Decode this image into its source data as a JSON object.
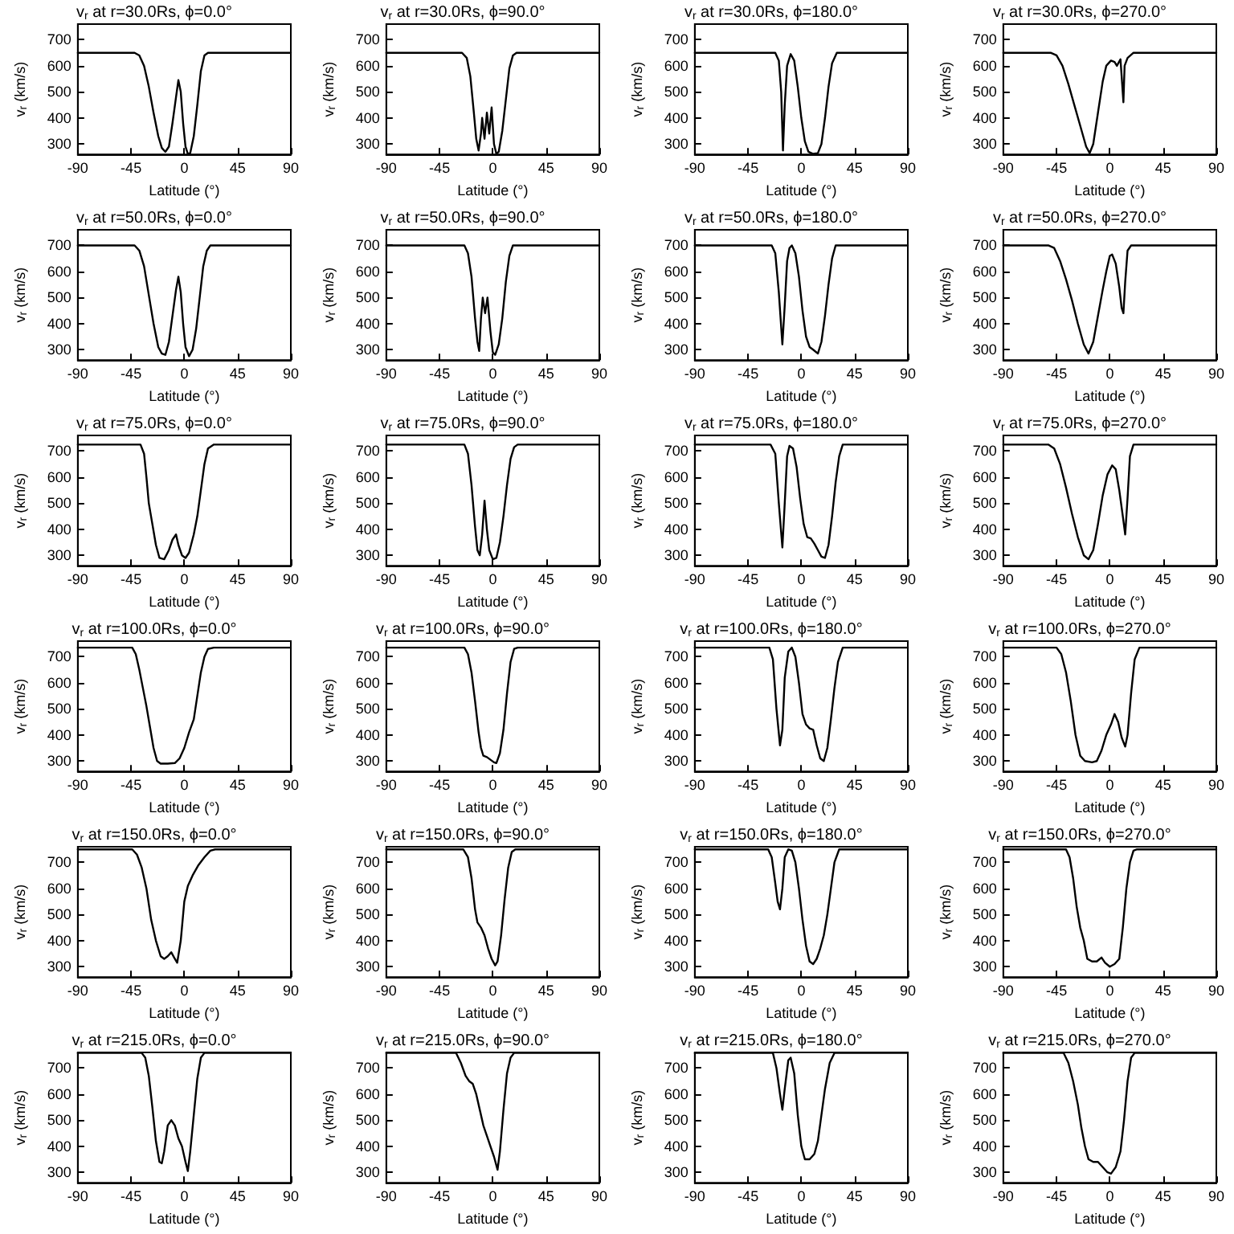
{
  "chart_data": [
    {
      "type": "line",
      "title": "v$_{r}$ at r=30.0Rs, ϕ=0.0°",
      "xlabel": "Latitude (°)",
      "ylabel": "v$_{r}$ (km/s)",
      "xlim": [
        -90,
        90
      ],
      "ylim": [
        260,
        760
      ],
      "xticks": [
        -90,
        -45,
        0,
        45,
        90
      ],
      "yticks": [
        300,
        400,
        500,
        600,
        700
      ],
      "grid": false,
      "marker": "none",
      "color": "#000000",
      "x": [
        -90,
        -42,
        -38,
        -34,
        -30,
        -26,
        -22,
        -19,
        -16,
        -13,
        -10,
        -7,
        -5,
        -3,
        -1,
        1,
        3,
        5,
        8,
        11,
        14,
        17,
        20,
        90
      ],
      "values": [
        650,
        650,
        640,
        600,
        520,
        420,
        330,
        285,
        270,
        290,
        380,
        480,
        545,
        500,
        380,
        290,
        262,
        265,
        330,
        450,
        580,
        640,
        650,
        650
      ]
    },
    {
      "type": "line",
      "title": "v$_{r}$ at r=30.0Rs, ϕ=90.0°",
      "xlabel": "Latitude (°)",
      "ylabel": "v$_{r}$ (km/s)",
      "xlim": [
        -90,
        90
      ],
      "ylim": [
        260,
        760
      ],
      "xticks": [
        -90,
        -45,
        0,
        45,
        90
      ],
      "yticks": [
        300,
        400,
        500,
        600,
        700
      ],
      "grid": false,
      "marker": "none",
      "color": "#000000",
      "x": [
        -90,
        -26,
        -22,
        -19,
        -16,
        -14,
        -12,
        -10,
        -9,
        -7,
        -5,
        -3,
        -1,
        1,
        3,
        5,
        8,
        11,
        14,
        17,
        20,
        90
      ],
      "values": [
        650,
        650,
        630,
        560,
        420,
        320,
        275,
        340,
        400,
        320,
        420,
        340,
        440,
        300,
        262,
        270,
        350,
        470,
        590,
        640,
        650,
        650
      ]
    },
    {
      "type": "line",
      "title": "v$_{r}$ at r=30.0Rs, ϕ=180.0°",
      "xlabel": "Latitude (°)",
      "ylabel": "v$_{r}$ (km/s)",
      "xlim": [
        -90,
        90
      ],
      "ylim": [
        260,
        760
      ],
      "xticks": [
        -90,
        -45,
        0,
        45,
        90
      ],
      "yticks": [
        300,
        400,
        500,
        600,
        700
      ],
      "grid": false,
      "marker": "none",
      "color": "#000000",
      "x": [
        -90,
        -22,
        -19,
        -17,
        -15.5,
        -14,
        -12,
        -9,
        -6,
        -3,
        0,
        3,
        6,
        10,
        14,
        17,
        20,
        23,
        26,
        30,
        90
      ],
      "values": [
        650,
        650,
        620,
        500,
        275,
        450,
        600,
        645,
        620,
        520,
        400,
        310,
        270,
        262,
        265,
        300,
        400,
        520,
        610,
        650,
        650
      ]
    },
    {
      "type": "line",
      "title": "v$_{r}$ at r=30.0Rs, ϕ=270.0°",
      "xlabel": "Latitude (°)",
      "ylabel": "v$_{r}$ (km/s)",
      "xlim": [
        -90,
        90
      ],
      "ylim": [
        260,
        760
      ],
      "xticks": [
        -90,
        -45,
        0,
        45,
        90
      ],
      "yticks": [
        300,
        400,
        500,
        600,
        700
      ],
      "grid": false,
      "marker": "none",
      "color": "#000000",
      "x": [
        -90,
        -50,
        -45,
        -40,
        -35,
        -30,
        -25,
        -20,
        -17,
        -14,
        -10,
        -6,
        -3,
        1,
        4,
        6,
        9,
        10,
        11.5,
        12.5,
        15,
        20,
        90
      ],
      "values": [
        650,
        650,
        640,
        600,
        530,
        450,
        370,
        290,
        265,
        300,
        420,
        540,
        600,
        620,
        615,
        600,
        625,
        560,
        460,
        600,
        630,
        650,
        650
      ]
    },
    {
      "type": "line",
      "title": "v$_{r}$ at r=50.0Rs, ϕ=0.0°",
      "xlabel": "Latitude (°)",
      "ylabel": "v$_{r}$ (km/s)",
      "xlim": [
        -90,
        90
      ],
      "ylim": [
        260,
        760
      ],
      "xticks": [
        -90,
        -45,
        0,
        45,
        90
      ],
      "yticks": [
        300,
        400,
        500,
        600,
        700
      ],
      "grid": false,
      "marker": "none",
      "color": "#000000",
      "x": [
        -90,
        -42,
        -38,
        -34,
        -30,
        -26,
        -22,
        -19,
        -16,
        -13,
        -10,
        -7,
        -5,
        -3,
        -1,
        1,
        4,
        7,
        10,
        13,
        16,
        19,
        22,
        90
      ],
      "values": [
        700,
        700,
        680,
        620,
        510,
        400,
        310,
        285,
        280,
        330,
        430,
        530,
        580,
        520,
        400,
        310,
        275,
        300,
        380,
        500,
        620,
        680,
        700,
        700
      ]
    },
    {
      "type": "line",
      "title": "v$_{r}$ at r=50.0Rs, ϕ=90.0°",
      "xlabel": "Latitude (°)",
      "ylabel": "v$_{r}$ (km/s)",
      "xlim": [
        -90,
        90
      ],
      "ylim": [
        260,
        760
      ],
      "xticks": [
        -90,
        -45,
        0,
        45,
        90
      ],
      "yticks": [
        300,
        400,
        500,
        600,
        700
      ],
      "grid": false,
      "marker": "none",
      "color": "#000000",
      "x": [
        -90,
        -24,
        -21,
        -18,
        -15,
        -13,
        -11.5,
        -10,
        -8.5,
        -6.5,
        -4.5,
        -2,
        0,
        2,
        5,
        8,
        11,
        14,
        17,
        90
      ],
      "values": [
        700,
        700,
        670,
        580,
        420,
        330,
        295,
        420,
        500,
        440,
        500,
        370,
        290,
        280,
        320,
        420,
        560,
        660,
        700,
        700
      ]
    },
    {
      "type": "line",
      "title": "v$_{r}$ at r=50.0Rs, ϕ=180.0°",
      "xlabel": "Latitude (°)",
      "ylabel": "v$_{r}$ (km/s)",
      "xlim": [
        -90,
        90
      ],
      "ylim": [
        260,
        760
      ],
      "xticks": [
        -90,
        -45,
        0,
        45,
        90
      ],
      "yticks": [
        300,
        400,
        500,
        600,
        700
      ],
      "grid": false,
      "marker": "none",
      "color": "#000000",
      "x": [
        -90,
        -25,
        -22,
        -19,
        -16,
        -14,
        -12,
        -10,
        -8,
        -5,
        -2,
        1,
        4,
        7,
        10,
        14,
        17,
        20,
        23,
        26,
        29,
        90
      ],
      "values": [
        700,
        700,
        670,
        520,
        320,
        470,
        640,
        690,
        700,
        670,
        580,
        450,
        350,
        310,
        300,
        285,
        330,
        430,
        550,
        650,
        700,
        700
      ]
    },
    {
      "type": "line",
      "title": "v$_{r}$ at r=50.0Rs, ϕ=270.0°",
      "xlabel": "Latitude (°)",
      "ylabel": "v$_{r}$ (km/s)",
      "xlim": [
        -90,
        90
      ],
      "ylim": [
        260,
        760
      ],
      "xticks": [
        -90,
        -45,
        0,
        45,
        90
      ],
      "yticks": [
        300,
        400,
        500,
        600,
        700
      ],
      "grid": false,
      "marker": "none",
      "color": "#000000",
      "x": [
        -90,
        -52,
        -47,
        -42,
        -37,
        -32,
        -27,
        -22,
        -18,
        -14,
        -10,
        -6,
        -3,
        0,
        2,
        5,
        8,
        10,
        11.5,
        13,
        15,
        18,
        90
      ],
      "values": [
        700,
        700,
        690,
        640,
        570,
        490,
        400,
        320,
        285,
        330,
        430,
        530,
        600,
        660,
        665,
        630,
        540,
        460,
        440,
        560,
        680,
        700,
        700
      ]
    },
    {
      "type": "line",
      "title": "v$_{r}$ at r=75.0Rs, ϕ=0.0°",
      "xlabel": "Latitude (°)",
      "ylabel": "v$_{r}$ (km/s)",
      "xlim": [
        -90,
        90
      ],
      "ylim": [
        260,
        760
      ],
      "xticks": [
        -90,
        -45,
        0,
        45,
        90
      ],
      "yticks": [
        300,
        400,
        500,
        600,
        700
      ],
      "grid": false,
      "marker": "none",
      "color": "#000000",
      "x": [
        -90,
        -37,
        -34,
        -32,
        -30,
        -27,
        -24,
        -21,
        -17,
        -13,
        -10,
        -7,
        -5,
        -2,
        1,
        4,
        8,
        11,
        14,
        17,
        20,
        25,
        90
      ],
      "values": [
        725,
        725,
        690,
        600,
        500,
        420,
        340,
        290,
        285,
        320,
        360,
        380,
        340,
        300,
        290,
        310,
        380,
        450,
        550,
        650,
        710,
        725,
        725
      ]
    },
    {
      "type": "line",
      "title": "v$_{r}$ at r=75.0Rs, ϕ=90.0°",
      "xlabel": "Latitude (°)",
      "ylabel": "v$_{r}$ (km/s)",
      "xlim": [
        -90,
        90
      ],
      "ylim": [
        260,
        760
      ],
      "xticks": [
        -90,
        -45,
        0,
        45,
        90
      ],
      "yticks": [
        300,
        400,
        500,
        600,
        700
      ],
      "grid": false,
      "marker": "none",
      "color": "#000000",
      "x": [
        -90,
        -24,
        -21,
        -18,
        -15,
        -13,
        -11,
        -9,
        -7,
        -5,
        -3,
        0,
        3,
        6,
        9,
        12,
        15,
        18,
        21,
        90
      ],
      "values": [
        725,
        725,
        690,
        570,
        410,
        320,
        300,
        380,
        510,
        400,
        320,
        285,
        290,
        350,
        450,
        570,
        670,
        715,
        725,
        725
      ]
    },
    {
      "type": "line",
      "title": "v$_{r}$ at r=75.0Rs, ϕ=180.0°",
      "xlabel": "Latitude (°)",
      "ylabel": "v$_{r}$ (km/s)",
      "xlim": [
        -90,
        90
      ],
      "ylim": [
        260,
        760
      ],
      "xticks": [
        -90,
        -45,
        0,
        45,
        90
      ],
      "yticks": [
        300,
        400,
        500,
        600,
        700
      ],
      "grid": false,
      "marker": "none",
      "color": "#000000",
      "x": [
        -90,
        -26,
        -22,
        -19,
        -16,
        -14,
        -12,
        -10,
        -7,
        -4,
        -1,
        2,
        5,
        8,
        11,
        14,
        17,
        20,
        23,
        26,
        29,
        32,
        35,
        90
      ],
      "values": [
        725,
        725,
        690,
        500,
        330,
        500,
        680,
        720,
        710,
        640,
        520,
        420,
        370,
        365,
        345,
        320,
        295,
        290,
        340,
        450,
        580,
        680,
        725,
        725
      ]
    },
    {
      "type": "line",
      "title": "v$_{r}$ at r=75.0Rs, ϕ=270.0°",
      "xlabel": "Latitude (°)",
      "ylabel": "v$_{r}$ (km/s)",
      "xlim": [
        -90,
        90
      ],
      "ylim": [
        260,
        760
      ],
      "xticks": [
        -90,
        -45,
        0,
        45,
        90
      ],
      "yticks": [
        300,
        400,
        500,
        600,
        700
      ],
      "grid": false,
      "marker": "none",
      "color": "#000000",
      "x": [
        -90,
        -52,
        -47,
        -42,
        -37,
        -32,
        -27,
        -22,
        -18,
        -14,
        -10,
        -6,
        -2,
        2,
        5,
        8,
        11,
        13,
        15,
        17,
        20,
        90
      ],
      "values": [
        725,
        725,
        710,
        650,
        560,
        460,
        370,
        300,
        285,
        320,
        420,
        530,
        610,
        645,
        630,
        550,
        450,
        380,
        520,
        680,
        725,
        725
      ]
    },
    {
      "type": "line",
      "title": "v$_{r}$ at r=100.0Rs, ϕ=0.0°",
      "xlabel": "Latitude (°)",
      "ylabel": "v$_{r}$ (km/s)",
      "xlim": [
        -90,
        90
      ],
      "ylim": [
        260,
        760
      ],
      "xticks": [
        -90,
        -45,
        0,
        45,
        90
      ],
      "yticks": [
        300,
        400,
        500,
        600,
        700
      ],
      "grid": false,
      "marker": "none",
      "color": "#000000",
      "x": [
        -90,
        -44,
        -41,
        -38,
        -35,
        -32,
        -29,
        -26,
        -23,
        -20,
        -14,
        -8,
        -4,
        0,
        4,
        8,
        11,
        14,
        17,
        20,
        25,
        90
      ],
      "values": [
        735,
        735,
        710,
        650,
        580,
        510,
        430,
        350,
        300,
        290,
        290,
        292,
        310,
        350,
        410,
        460,
        550,
        640,
        700,
        730,
        735,
        735
      ]
    },
    {
      "type": "line",
      "title": "v$_{r}$ at r=100.0Rs, ϕ=90.0°",
      "xlabel": "Latitude (°)",
      "ylabel": "v$_{r}$ (km/s)",
      "xlim": [
        -90,
        90
      ],
      "ylim": [
        260,
        760
      ],
      "xticks": [
        -90,
        -45,
        0,
        45,
        90
      ],
      "yticks": [
        300,
        400,
        500,
        600,
        700
      ],
      "grid": false,
      "marker": "none",
      "color": "#000000",
      "x": [
        -90,
        -24,
        -21,
        -18,
        -15,
        -12,
        -10,
        -8,
        -5,
        -2,
        1,
        3,
        6,
        9,
        12,
        15,
        18,
        21,
        90
      ],
      "values": [
        735,
        735,
        710,
        640,
        530,
        410,
        350,
        320,
        315,
        305,
        295,
        292,
        330,
        420,
        560,
        680,
        730,
        735,
        735
      ]
    },
    {
      "type": "line",
      "title": "v$_{r}$ at r=100.0Rs, ϕ=180.0°",
      "xlabel": "Latitude (°)",
      "ylabel": "v$_{r}$ (km/s)",
      "xlim": [
        -90,
        90
      ],
      "ylim": [
        260,
        760
      ],
      "xticks": [
        -90,
        -45,
        0,
        45,
        90
      ],
      "yticks": [
        300,
        400,
        500,
        600,
        700
      ],
      "grid": false,
      "marker": "none",
      "color": "#000000",
      "x": [
        -90,
        -27,
        -24,
        -21,
        -18,
        -16,
        -14,
        -11,
        -8,
        -5,
        -2,
        1,
        4,
        7,
        10,
        13,
        16,
        19,
        22,
        25,
        28,
        31,
        35,
        90
      ],
      "values": [
        735,
        735,
        690,
        500,
        360,
        420,
        620,
        720,
        735,
        700,
        600,
        480,
        440,
        425,
        420,
        360,
        310,
        300,
        350,
        460,
        580,
        680,
        735,
        735
      ]
    },
    {
      "type": "line",
      "title": "v$_{r}$ at r=100.0Rs, ϕ=270.0°",
      "xlabel": "Latitude (°)",
      "ylabel": "v$_{r}$ (km/s)",
      "xlim": [
        -90,
        90
      ],
      "ylim": [
        260,
        760
      ],
      "xticks": [
        -90,
        -45,
        0,
        45,
        90
      ],
      "yticks": [
        300,
        400,
        500,
        600,
        700
      ],
      "grid": false,
      "marker": "none",
      "color": "#000000",
      "x": [
        -90,
        -45,
        -41,
        -37,
        -33,
        -29,
        -25,
        -21,
        -15,
        -11,
        -7,
        -3,
        1,
        4,
        7,
        10,
        13,
        15,
        18,
        21,
        25,
        90
      ],
      "values": [
        735,
        735,
        710,
        640,
        530,
        400,
        320,
        300,
        295,
        300,
        340,
        400,
        440,
        480,
        450,
        390,
        355,
        400,
        560,
        690,
        735,
        735
      ]
    },
    {
      "type": "line",
      "title": "v$_{r}$ at r=150.0Rs, ϕ=0.0°",
      "xlabel": "Latitude (°)",
      "ylabel": "v$_{r}$ (km/s)",
      "xlim": [
        -90,
        90
      ],
      "ylim": [
        260,
        760
      ],
      "xticks": [
        -90,
        -45,
        0,
        45,
        90
      ],
      "yticks": [
        300,
        400,
        500,
        600,
        700
      ],
      "grid": false,
      "marker": "none",
      "color": "#000000",
      "x": [
        -90,
        -44,
        -40,
        -36,
        -32,
        -28,
        -24,
        -20,
        -17,
        -14,
        -11,
        -8,
        -6,
        -3,
        0,
        3,
        7,
        12,
        17,
        22,
        26,
        90
      ],
      "values": [
        750,
        750,
        730,
        680,
        600,
        480,
        400,
        340,
        330,
        340,
        355,
        330,
        315,
        400,
        550,
        610,
        650,
        690,
        720,
        745,
        750,
        750
      ]
    },
    {
      "type": "line",
      "title": "v$_{r}$ at r=150.0Rs, ϕ=90.0°",
      "xlabel": "Latitude (°)",
      "ylabel": "v$_{r}$ (km/s)",
      "xlim": [
        -90,
        90
      ],
      "ylim": [
        260,
        760
      ],
      "xticks": [
        -90,
        -45,
        0,
        45,
        90
      ],
      "yticks": [
        300,
        400,
        500,
        600,
        700
      ],
      "grid": false,
      "marker": "none",
      "color": "#000000",
      "x": [
        -90,
        -25,
        -21,
        -18,
        -15,
        -13,
        -10,
        -7,
        -4,
        -1,
        2,
        4,
        7,
        10,
        13,
        16,
        19,
        90
      ],
      "values": [
        750,
        750,
        720,
        640,
        520,
        470,
        450,
        420,
        370,
        330,
        305,
        320,
        420,
        560,
        680,
        740,
        750,
        750
      ]
    },
    {
      "type": "line",
      "title": "v$_{r}$ at r=150.0Rs, ϕ=180.0°",
      "xlabel": "Latitude (°)",
      "ylabel": "v$_{r}$ (km/s)",
      "xlim": [
        -90,
        90
      ],
      "ylim": [
        260,
        760
      ],
      "xticks": [
        -90,
        -45,
        0,
        45,
        90
      ],
      "yticks": [
        300,
        400,
        500,
        600,
        700
      ],
      "grid": false,
      "marker": "none",
      "color": "#000000",
      "x": [
        -90,
        -28,
        -25,
        -22,
        -20,
        -18,
        -16,
        -14,
        -11,
        -8,
        -5,
        -2,
        1,
        4,
        7,
        10,
        13,
        16,
        19,
        22,
        25,
        28,
        32,
        90
      ],
      "values": [
        750,
        750,
        720,
        620,
        550,
        520,
        600,
        720,
        750,
        745,
        700,
        600,
        480,
        380,
        320,
        310,
        330,
        370,
        420,
        500,
        600,
        700,
        750,
        750
      ]
    },
    {
      "type": "line",
      "title": "v$_{r}$ at r=150.0Rs, ϕ=270.0°",
      "xlabel": "Latitude (°)",
      "ylabel": "v$_{r}$ (km/s)",
      "xlim": [
        -90,
        90
      ],
      "ylim": [
        260,
        760
      ],
      "xticks": [
        -90,
        -45,
        0,
        45,
        90
      ],
      "yticks": [
        300,
        400,
        500,
        600,
        700
      ],
      "grid": false,
      "marker": "none",
      "color": "#000000",
      "x": [
        -90,
        -37,
        -34,
        -31,
        -28,
        -25,
        -22,
        -19,
        -15,
        -11,
        -7,
        -4,
        0,
        4,
        8,
        11,
        14,
        17,
        20,
        23,
        90
      ],
      "values": [
        750,
        750,
        720,
        640,
        530,
        450,
        400,
        330,
        320,
        320,
        335,
        315,
        300,
        310,
        330,
        450,
        600,
        700,
        745,
        750,
        750
      ]
    },
    {
      "type": "line",
      "title": "v$_{r}$ at r=215.0Rs, ϕ=0.0°",
      "xlabel": "Latitude (°)",
      "ylabel": "v$_{r}$ (km/s)",
      "xlim": [
        -90,
        90
      ],
      "ylim": [
        260,
        760
      ],
      "xticks": [
        -90,
        -45,
        0,
        45,
        90
      ],
      "yticks": [
        300,
        400,
        500,
        600,
        700
      ],
      "grid": false,
      "marker": "none",
      "color": "#000000",
      "x": [
        -90,
        -36,
        -33,
        -30,
        -27,
        -24,
        -21,
        -19,
        -17,
        -14,
        -11,
        -8,
        -5,
        -2,
        1,
        3,
        5,
        8,
        11,
        14,
        17,
        90
      ],
      "values": [
        758,
        758,
        740,
        670,
        550,
        420,
        340,
        335,
        380,
        480,
        500,
        480,
        430,
        400,
        340,
        305,
        380,
        520,
        660,
        740,
        758,
        758
      ]
    },
    {
      "type": "line",
      "title": "v$_{r}$ at r=215.0Rs, ϕ=90.0°",
      "xlabel": "Latitude (°)",
      "ylabel": "v$_{r}$ (km/s)",
      "xlim": [
        -90,
        90
      ],
      "ylim": [
        260,
        760
      ],
      "xticks": [
        -90,
        -45,
        0,
        45,
        90
      ],
      "yticks": [
        300,
        400,
        500,
        600,
        700
      ],
      "grid": false,
      "marker": "none",
      "color": "#000000",
      "x": [
        -90,
        -31,
        -27,
        -23,
        -20,
        -17,
        -14,
        -11,
        -8,
        -5,
        -2,
        1,
        4,
        6,
        9,
        12,
        15,
        18,
        90
      ],
      "values": [
        758,
        758,
        720,
        670,
        650,
        640,
        600,
        540,
        480,
        440,
        400,
        360,
        310,
        380,
        540,
        680,
        740,
        758,
        758
      ]
    },
    {
      "type": "line",
      "title": "v$_{r}$ at r=215.0Rs, ϕ=180.0°",
      "xlabel": "Latitude (°)",
      "ylabel": "v$_{r}$ (km/s)",
      "xlim": [
        -90,
        90
      ],
      "ylim": [
        260,
        760
      ],
      "xticks": [
        -90,
        -45,
        0,
        45,
        90
      ],
      "yticks": [
        300,
        400,
        500,
        600,
        700
      ],
      "grid": false,
      "marker": "none",
      "color": "#000000",
      "x": [
        -90,
        -24,
        -21,
        -18,
        -16,
        -14,
        -11,
        -9,
        -6,
        -3,
        0,
        3,
        7,
        11,
        14,
        17,
        20,
        24,
        28,
        90
      ],
      "values": [
        758,
        758,
        700,
        600,
        540,
        620,
        730,
        740,
        680,
        520,
        400,
        350,
        350,
        370,
        420,
        520,
        620,
        720,
        758,
        758
      ]
    },
    {
      "type": "line",
      "title": "v$_{r}$ at r=215.0Rs, ϕ=270.0°",
      "xlabel": "Latitude (°)",
      "ylabel": "v$_{r}$ (km/s)",
      "xlim": [
        -90,
        90
      ],
      "ylim": [
        260,
        760
      ],
      "xticks": [
        -90,
        -45,
        0,
        45,
        90
      ],
      "yticks": [
        300,
        400,
        500,
        600,
        700
      ],
      "grid": false,
      "marker": "none",
      "color": "#000000",
      "x": [
        -90,
        -39,
        -35,
        -31,
        -27,
        -24,
        -21,
        -18,
        -14,
        -10,
        -6,
        -2,
        1,
        5,
        9,
        12,
        15,
        18,
        21,
        90
      ],
      "values": [
        758,
        758,
        720,
        650,
        560,
        470,
        400,
        350,
        340,
        340,
        320,
        300,
        295,
        320,
        380,
        500,
        650,
        740,
        758,
        758
      ]
    }
  ]
}
